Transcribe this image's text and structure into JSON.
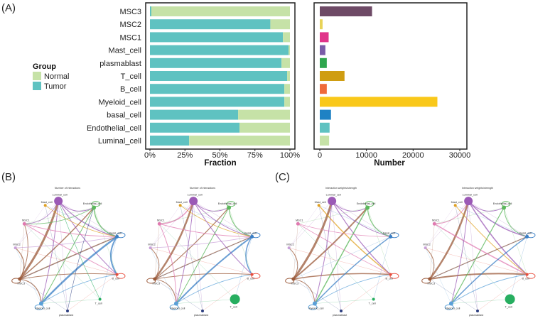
{
  "panels": {
    "A": "(A)",
    "B": "(B)",
    "C": "(C)"
  },
  "legend": {
    "title": "Group",
    "items": [
      {
        "label": "Normal",
        "color": "#c6e2a7"
      },
      {
        "label": "Tumor",
        "color": "#5fc2c1"
      }
    ]
  },
  "chart_data": [
    {
      "type": "bar",
      "orientation": "horizontal",
      "stacked": true,
      "categories": [
        "MSC3",
        "MSC2",
        "MSC1",
        "Mast_cell",
        "plasmablast",
        "T_cell",
        "B_cell",
        "Myeloid_cell",
        "basal_cell",
        "Endothelial_cell",
        "Luminal_cell"
      ],
      "series": [
        {
          "name": "Tumor",
          "color": "#5fc2c1",
          "values": [
            0.01,
            0.86,
            0.95,
            0.99,
            0.94,
            0.98,
            0.96,
            0.96,
            0.63,
            0.64,
            0.28
          ]
        },
        {
          "name": "Normal",
          "color": "#c6e2a7",
          "values": [
            0.99,
            0.14,
            0.05,
            0.01,
            0.06,
            0.02,
            0.04,
            0.04,
            0.37,
            0.36,
            0.72
          ]
        }
      ],
      "xlabel": "Fraction",
      "xticks": [
        "0%",
        "25%",
        "50%",
        "75%",
        "100%"
      ],
      "xlim": [
        0,
        1
      ]
    },
    {
      "type": "bar",
      "orientation": "horizontal",
      "categories": [
        "MSC3",
        "MSC2",
        "MSC1",
        "Mast_cell",
        "plasmablast",
        "T_cell",
        "B_cell",
        "Myeloid_cell",
        "basal_cell",
        "Endothelial_cell",
        "Luminal_cell"
      ],
      "values": [
        11200,
        600,
        1900,
        1200,
        1500,
        5300,
        1500,
        25200,
        2400,
        2100,
        2000
      ],
      "colors": [
        "#6e4a66",
        "#e8d358",
        "#e0348a",
        "#7a5ca8",
        "#2ea64e",
        "#cf9d12",
        "#ef6a3a",
        "#f9c81a",
        "#1f82c4",
        "#5fc2c1",
        "#c6e2a7"
      ],
      "xlabel": "Number",
      "xticks": [
        "0",
        "10000",
        "20000",
        "30000"
      ],
      "xlim": [
        0,
        31000
      ]
    }
  ],
  "networks": {
    "node_labels": [
      "Luminal_cell",
      "Endothelial_cell",
      "basal_cell",
      "B_cell",
      "T_cell",
      "plasmablast",
      "Myeloid_cell",
      "MSC3",
      "MSC2",
      "MSC1",
      "Mast_cell"
    ],
    "node_colors": [
      "#9b59b6",
      "#5cb85c",
      "#3a7fc6",
      "#e74c3c",
      "#27ae60",
      "#2c3e80",
      "#5aa0d8",
      "#9b5a3a",
      "#c8a0d8",
      "#e07ab0",
      "#e0a020"
    ],
    "items": [
      {
        "title": "Number of interactions"
      },
      {
        "title": "Number of interactions"
      },
      {
        "title": "Interaction weights/strength"
      },
      {
        "title": "Interaction weights/strength"
      }
    ]
  }
}
